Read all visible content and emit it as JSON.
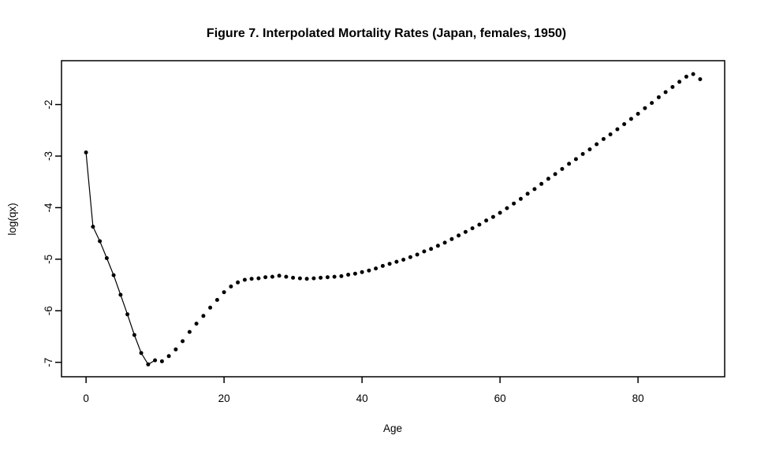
{
  "figure": {
    "background_color": "#ffffff",
    "foreground_color": "#000000"
  },
  "chart_data": {
    "type": "scatter",
    "title": "Figure 7. Interpolated Mortality Rates (Japan, females, 1950)",
    "xlabel": "Age",
    "ylabel": "log(qx)",
    "x_ticks": [
      0,
      20,
      40,
      60,
      80
    ],
    "y_ticks": [
      -7,
      -6,
      -5,
      -4,
      -3,
      -2
    ],
    "xlim": [
      -3.56,
      92.56
    ],
    "ylim": [
      -7.28,
      -1.15
    ],
    "grid": "off",
    "legend": "none",
    "point_style": "filled-dot",
    "point_color": "#000000",
    "line_segment_note": "thin connecting line visible only through steep early ages",
    "line_start_age": 0,
    "line_end_age": 10,
    "x": [
      0,
      1,
      2,
      3,
      4,
      5,
      6,
      7,
      8,
      9,
      10,
      11,
      12,
      13,
      14,
      15,
      16,
      17,
      18,
      19,
      20,
      21,
      22,
      23,
      24,
      25,
      26,
      27,
      28,
      29,
      30,
      31,
      32,
      33,
      34,
      35,
      36,
      37,
      38,
      39,
      40,
      41,
      42,
      43,
      44,
      45,
      46,
      47,
      48,
      49,
      50,
      51,
      52,
      53,
      54,
      55,
      56,
      57,
      58,
      59,
      60,
      61,
      62,
      63,
      64,
      65,
      66,
      67,
      68,
      69,
      70,
      71,
      72,
      73,
      74,
      75,
      76,
      77,
      78,
      79,
      80,
      81,
      82,
      83,
      84,
      85,
      86,
      87,
      88,
      89
    ],
    "y": [
      -2.93,
      -4.37,
      -4.65,
      -4.98,
      -5.31,
      -5.69,
      -6.07,
      -6.47,
      -6.82,
      -7.04,
      -6.96,
      -6.98,
      -6.88,
      -6.75,
      -6.59,
      -6.41,
      -6.25,
      -6.1,
      -5.94,
      -5.79,
      -5.64,
      -5.53,
      -5.45,
      -5.4,
      -5.38,
      -5.37,
      -5.35,
      -5.34,
      -5.32,
      -5.34,
      -5.36,
      -5.37,
      -5.38,
      -5.37,
      -5.36,
      -5.35,
      -5.34,
      -5.33,
      -5.3,
      -5.28,
      -5.25,
      -5.22,
      -5.18,
      -5.13,
      -5.09,
      -5.05,
      -5.01,
      -4.96,
      -4.91,
      -4.85,
      -4.8,
      -4.74,
      -4.68,
      -4.61,
      -4.54,
      -4.47,
      -4.4,
      -4.33,
      -4.25,
      -4.18,
      -4.1,
      -4.01,
      -3.92,
      -3.83,
      -3.73,
      -3.64,
      -3.54,
      -3.44,
      -3.35,
      -3.25,
      -3.15,
      -3.06,
      -2.96,
      -2.87,
      -2.77,
      -2.67,
      -2.58,
      -2.48,
      -2.38,
      -2.28,
      -2.18,
      -2.07,
      -1.97,
      -1.86,
      -1.76,
      -1.66,
      -1.56,
      -1.46,
      -1.41,
      -1.51
    ]
  }
}
